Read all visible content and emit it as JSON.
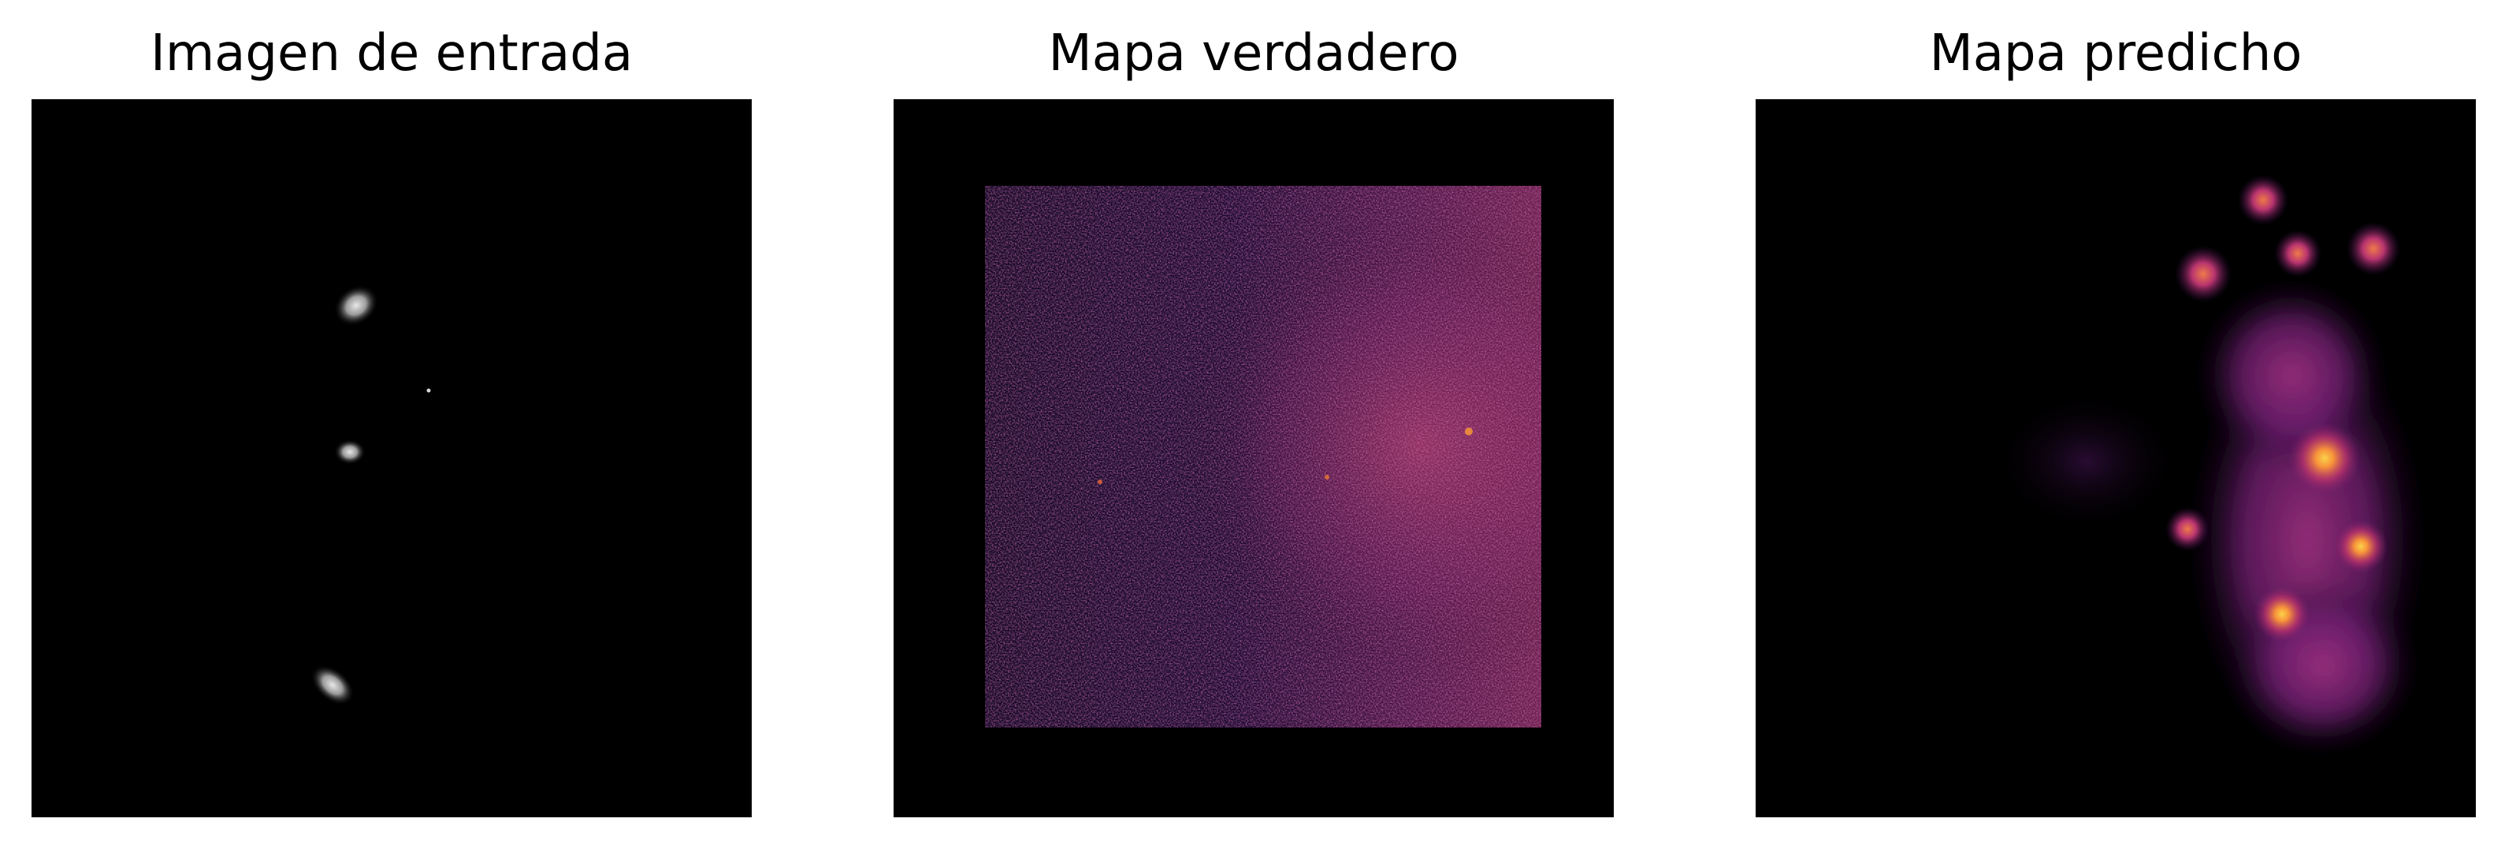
{
  "panels": [
    {
      "title": "Imagen de entrada",
      "colormap": "gray"
    },
    {
      "title": "Mapa verdadero",
      "colormap": "inferno"
    },
    {
      "title": "Mapa predicho",
      "colormap": "inferno"
    }
  ],
  "colors": {
    "background": "#ffffff",
    "image_background": "#000000",
    "inferno_dark": "#3b0f70",
    "inferno_mid": "#b5367a",
    "inferno_bright": "#f7a13a"
  }
}
